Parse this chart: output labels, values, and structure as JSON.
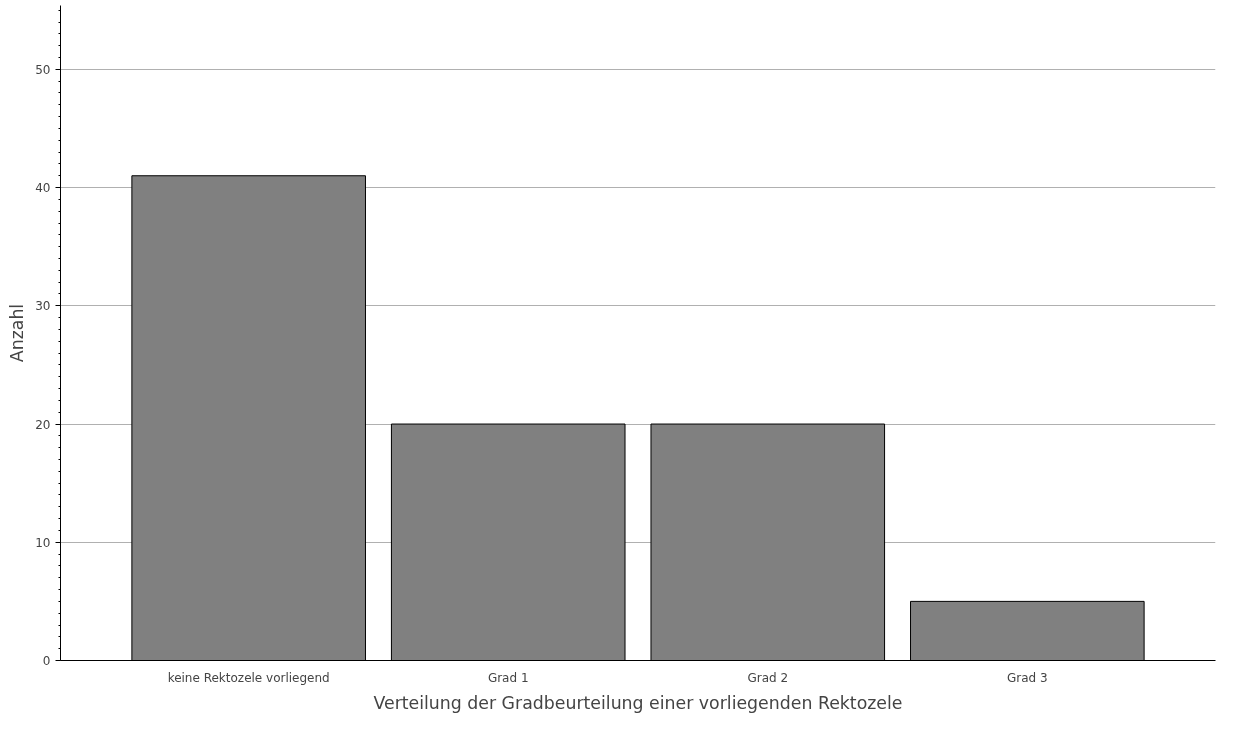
{
  "chart_data": {
    "type": "bar",
    "xlabel": "Verteilung der Gradbeurteilung einer vorliegenden Rektozele",
    "ylabel": "Anzahl",
    "categories": [
      "keine Rektozele vorliegend",
      "Grad 1",
      "Grad 2",
      "Grad 3"
    ],
    "values": [
      41,
      20,
      20,
      5
    ],
    "color": "#808080",
    "ylim": [
      0,
      55.4
    ],
    "yticks": [
      0,
      10,
      20,
      30,
      40,
      50
    ],
    "grid": "y"
  }
}
